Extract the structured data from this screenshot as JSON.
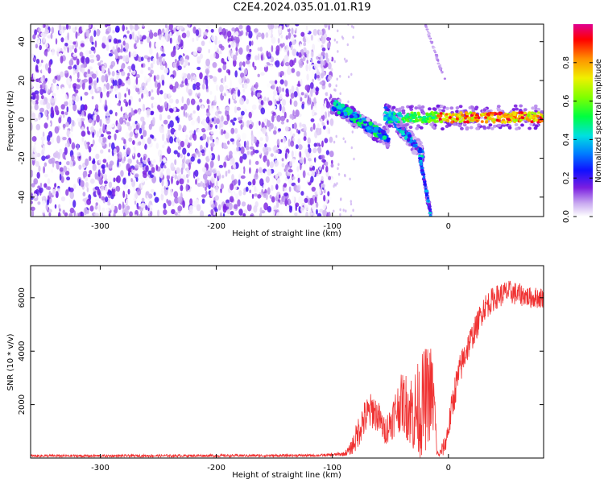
{
  "title": "C2E4.2024.035.01.01.R19",
  "chart_data": [
    {
      "type": "heatmap",
      "name": "spectrogram",
      "xlabel": "Height of straight line (km)",
      "ylabel": "Frequency (Hz)",
      "xlim": [
        -360,
        82
      ],
      "ylim": [
        -50,
        49
      ],
      "xticks": [
        -300,
        -200,
        -100,
        0
      ],
      "yticks": [
        -40,
        -20,
        0,
        20,
        40
      ],
      "colorbar": {
        "label": "Normalized spectral amplitude",
        "range": [
          0,
          1
        ],
        "ticks": [
          0.0,
          0.2,
          0.4,
          0.6,
          0.8
        ],
        "tick_labels": [
          "0.0",
          "0.2",
          "0.4",
          "0.6",
          "0.8"
        ]
      },
      "features": [
        {
          "name": "noise region",
          "x_range": [
            -360,
            -100
          ],
          "freq_range": [
            -50,
            49
          ]
        },
        {
          "name": "upper tone",
          "x_range": [
            -100,
            -52
          ],
          "freq_start": 8,
          "freq_end": -10
        },
        {
          "name": "middle tone",
          "x_range": [
            -55,
            -22
          ],
          "freq_start": 5,
          "freq_end": -18
        },
        {
          "name": "lower tone",
          "x_range": [
            -25,
            -15
          ],
          "freq_start": -18,
          "freq_end": -50
        },
        {
          "name": "faint line",
          "x_range": [
            -20,
            -3
          ],
          "freq_start": 49,
          "freq_end": 20
        },
        {
          "name": "carrier",
          "x_range": [
            -55,
            82
          ],
          "freq_center": 1
        }
      ]
    },
    {
      "type": "line",
      "name": "snr",
      "xlabel": "Height of straight line (km)",
      "ylabel": "SNR (10 * v/v)",
      "xlim": [
        -360,
        82
      ],
      "ylim": [
        0,
        7200
      ],
      "xticks": [
        -300,
        -200,
        -100,
        0
      ],
      "yticks": [
        2000,
        4000,
        6000
      ],
      "color": "#f03232",
      "series": [
        {
          "name": "SNR",
          "x": [
            -360,
            -300,
            -250,
            -200,
            -150,
            -110,
            -100,
            -90,
            -85,
            -80,
            -75,
            -70,
            -65,
            -60,
            -55,
            -50,
            -45,
            -40,
            -35,
            -30,
            -25,
            -20,
            -15,
            -12,
            -10,
            -8,
            -5,
            -3,
            0,
            3,
            6,
            10,
            15,
            20,
            25,
            30,
            35,
            40,
            45,
            50,
            55,
            60,
            65,
            70,
            75,
            82
          ],
          "values": [
            80,
            80,
            85,
            90,
            90,
            100,
            120,
            150,
            300,
            700,
            1300,
            1600,
            1800,
            1500,
            1000,
            1300,
            1800,
            2100,
            1900,
            1700,
            1800,
            2200,
            2500,
            1900,
            200,
            120,
            350,
            500,
            1100,
            1900,
            2600,
            3300,
            4000,
            4500,
            5000,
            5600,
            5800,
            6000,
            6100,
            6200,
            6200,
            6100,
            6100,
            6000,
            6000,
            6000
          ],
          "amplitude": [
            50,
            50,
            50,
            50,
            50,
            50,
            60,
            80,
            200,
            500,
            700,
            700,
            700,
            600,
            500,
            700,
            900,
            1100,
            1300,
            1600,
            1900,
            2000,
            1800,
            1300,
            100,
            100,
            300,
            350,
            500,
            600,
            650,
            600,
            600,
            500,
            500,
            500,
            500,
            450,
            450,
            450,
            450,
            450,
            400,
            400,
            400,
            400
          ]
        }
      ]
    }
  ]
}
